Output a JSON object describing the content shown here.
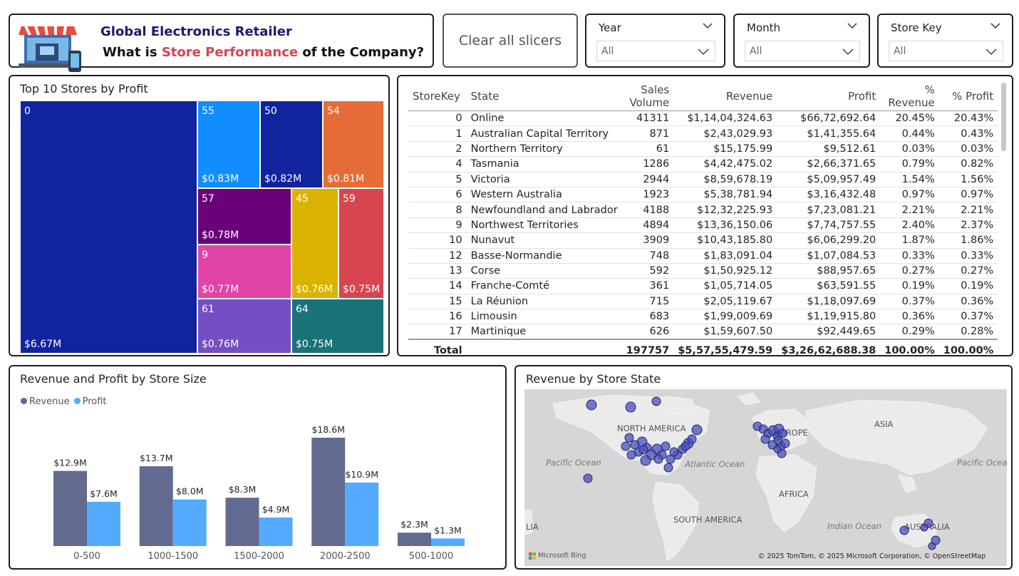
{
  "header": {
    "title_line1": "Global Electronics Retailer",
    "title_prefix": "What is ",
    "title_highlight": "Store Performance",
    "title_suffix": " of the Company?"
  },
  "clear_button": "Clear all slicers",
  "slicers": {
    "year": {
      "label": "Year",
      "value": "All"
    },
    "month": {
      "label": "Month",
      "value": "All"
    },
    "store_key": {
      "label": "Store Key",
      "value": "All"
    }
  },
  "treemap": {
    "title": "Top 10 Stores by Profit",
    "cells": [
      {
        "id": "0",
        "value": "$6.67M",
        "color": "#12239e"
      },
      {
        "id": "55",
        "value": "$0.83M",
        "color": "#118dff"
      },
      {
        "id": "50",
        "value": "$0.82M",
        "color": "#12239e"
      },
      {
        "id": "54",
        "value": "$0.81M",
        "color": "#e66c37"
      },
      {
        "id": "57",
        "value": "$0.78M",
        "color": "#6b007b"
      },
      {
        "id": "45",
        "value": "$0.76M",
        "color": "#d9b300"
      },
      {
        "id": "59",
        "value": "$0.75M",
        "color": "#d64550"
      },
      {
        "id": "9",
        "value": "$0.77M",
        "color": "#e044a7"
      },
      {
        "id": "61",
        "value": "$0.76M",
        "color": "#744ec2"
      },
      {
        "id": "64",
        "value": "$0.75M",
        "color": "#197278"
      }
    ]
  },
  "table": {
    "columns": [
      "StoreKey",
      "State",
      "Sales Volume",
      "Revenue",
      "Profit",
      "% Revenue",
      "% Profit"
    ],
    "rows": [
      [
        "0",
        "Online",
        "41311",
        "$1,14,04,324.63",
        "$66,72,692.64",
        "20.45%",
        "20.43%"
      ],
      [
        "1",
        "Australian Capital Territory",
        "871",
        "$2,43,029.93",
        "$1,41,355.64",
        "0.44%",
        "0.43%"
      ],
      [
        "2",
        "Northern Territory",
        "61",
        "$15,175.99",
        "$9,512.61",
        "0.03%",
        "0.03%"
      ],
      [
        "4",
        "Tasmania",
        "1286",
        "$4,42,475.02",
        "$2,66,371.65",
        "0.79%",
        "0.82%"
      ],
      [
        "5",
        "Victoria",
        "2944",
        "$8,59,678.19",
        "$5,09,957.49",
        "1.54%",
        "1.56%"
      ],
      [
        "6",
        "Western Australia",
        "1923",
        "$5,38,781.94",
        "$3,16,432.48",
        "0.97%",
        "0.97%"
      ],
      [
        "8",
        "Newfoundland and Labrador",
        "4188",
        "$12,32,225.93",
        "$7,23,081.21",
        "2.21%",
        "2.21%"
      ],
      [
        "9",
        "Northwest Territories",
        "4894",
        "$13,36,150.06",
        "$7,74,757.55",
        "2.40%",
        "2.37%"
      ],
      [
        "10",
        "Nunavut",
        "3909",
        "$10,43,185.80",
        "$6,06,299.20",
        "1.87%",
        "1.86%"
      ],
      [
        "12",
        "Basse-Normandie",
        "748",
        "$1,83,091.04",
        "$1,07,084.53",
        "0.33%",
        "0.33%"
      ],
      [
        "13",
        "Corse",
        "592",
        "$1,50,925.12",
        "$88,957.65",
        "0.27%",
        "0.27%"
      ],
      [
        "14",
        "Franche-Comté",
        "361",
        "$1,05,714.05",
        "$63,591.55",
        "0.19%",
        "0.19%"
      ],
      [
        "15",
        "La Réunion",
        "715",
        "$2,05,119.67",
        "$1,18,097.69",
        "0.37%",
        "0.36%"
      ],
      [
        "16",
        "Limousin",
        "683",
        "$1,99,009.69",
        "$1,19,915.80",
        "0.36%",
        "0.37%"
      ],
      [
        "17",
        "Martinique",
        "626",
        "$1,59,607.50",
        "$92,449.65",
        "0.29%",
        "0.28%"
      ]
    ],
    "total": [
      "Total",
      "",
      "197757",
      "$5,57,55,479.59",
      "$3,26,62,688.38",
      "100.00%",
      "100.00%"
    ]
  },
  "chart_data": {
    "type": "bar",
    "title": "Revenue and Profit by Store Size",
    "categories": [
      "0-500",
      "1000-1500",
      "1500-2000",
      "2000-2500",
      "500-1000"
    ],
    "series": [
      {
        "name": "Revenue",
        "values": [
          12.9,
          13.7,
          8.3,
          18.6,
          2.3
        ],
        "labels": [
          "$12.9M",
          "$13.7M",
          "$8.3M",
          "$18.6M",
          "$2.3M"
        ],
        "color": "#636a8f"
      },
      {
        "name": "Profit",
        "values": [
          7.6,
          8.0,
          4.9,
          10.9,
          1.3
        ],
        "labels": [
          "$7.6M",
          "$8.0M",
          "$4.9M",
          "$10.9M",
          "$1.3M"
        ],
        "color": "#54aaff"
      }
    ],
    "xlabel": "",
    "ylabel": "",
    "ylim": [
      0,
      18.6
    ],
    "grid": false,
    "legend": "top-left"
  },
  "map": {
    "title": "Revenue by Store State",
    "labels": {
      "north_america": "NORTH AMERICA",
      "europe": "EUROPE",
      "asia": "ASIA",
      "africa": "AFRICA",
      "south_america": "SOUTH AMERICA",
      "australia": "AUSTRALIA",
      "lia": "LIA",
      "pacific_left": "Pacific Ocean",
      "atlantic": "Atlantic Ocean",
      "indian": "Indian Ocean",
      "pacific_right": "Pacific Ocean"
    },
    "credit": "© 2025 TomTom, © 2025 Microsoft Corporation, © OpenStreetMap",
    "brand": "Microsoft Bing",
    "bubble_color": "#4a4ec0"
  }
}
